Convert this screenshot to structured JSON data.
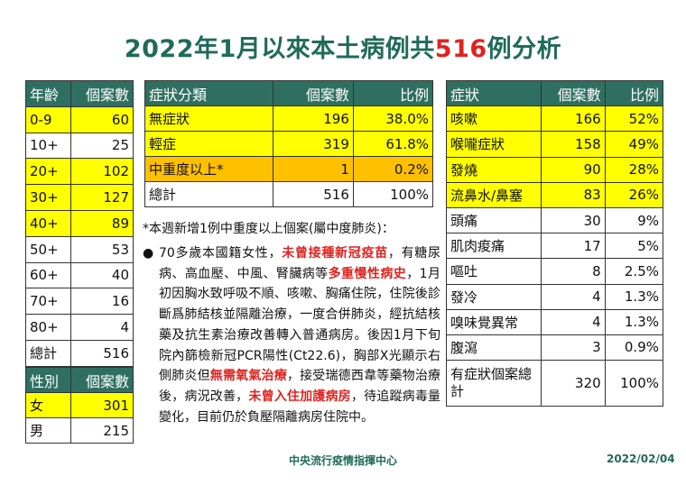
{
  "title": {
    "prefix": "2022年1月以來本土病例共",
    "highlight": "516",
    "suffix": "例分析"
  },
  "age_table": {
    "headers": [
      "年齡",
      "個案數"
    ],
    "rows": [
      {
        "label": "0-9",
        "value": "60",
        "highlight": true
      },
      {
        "label": "10+",
        "value": "25",
        "highlight": false
      },
      {
        "label": "20+",
        "value": "102",
        "highlight": true
      },
      {
        "label": "30+",
        "value": "127",
        "highlight": true
      },
      {
        "label": "40+",
        "value": "89",
        "highlight": true
      },
      {
        "label": "50+",
        "value": "53",
        "highlight": false
      },
      {
        "label": "60+",
        "value": "40",
        "highlight": false
      },
      {
        "label": "70+",
        "value": "16",
        "highlight": false
      },
      {
        "label": "80+",
        "value": "4",
        "highlight": false
      },
      {
        "label": "總計",
        "value": "516",
        "highlight": false
      }
    ]
  },
  "sex_table": {
    "headers": [
      "性別",
      "個案數"
    ],
    "rows": [
      {
        "label": "女",
        "value": "301",
        "highlight": true
      },
      {
        "label": "男",
        "value": "215",
        "highlight": false
      }
    ]
  },
  "severity_table": {
    "headers": [
      "症狀分類",
      "個案數",
      "比例"
    ],
    "rows": [
      {
        "label": "無症狀",
        "value": "196",
        "ratio": "38.0%",
        "color": "yellow"
      },
      {
        "label": "輕症",
        "value": "319",
        "ratio": "61.8%",
        "color": "yellow"
      },
      {
        "label": "中重度以上*",
        "value": "1",
        "ratio": "0.2%",
        "color": "orange"
      },
      {
        "label": "總計",
        "value": "516",
        "ratio": "100%",
        "color": "none"
      }
    ]
  },
  "symptom_table": {
    "headers": [
      "症狀",
      "個案數",
      "比例"
    ],
    "rows": [
      {
        "label": "咳嗽",
        "value": "166",
        "ratio": "52%",
        "highlight": true
      },
      {
        "label": "喉嚨症狀",
        "value": "158",
        "ratio": "49%",
        "highlight": true
      },
      {
        "label": "發燒",
        "value": "90",
        "ratio": "28%",
        "highlight": true
      },
      {
        "label": "流鼻水/鼻塞",
        "value": "83",
        "ratio": "26%",
        "highlight": true
      },
      {
        "label": "頭痛",
        "value": "30",
        "ratio": "9%",
        "highlight": false
      },
      {
        "label": "肌肉痠痛",
        "value": "17",
        "ratio": "5%",
        "highlight": false
      },
      {
        "label": "嘔吐",
        "value": "8",
        "ratio": "2.5%",
        "highlight": false
      },
      {
        "label": "發冷",
        "value": "4",
        "ratio": "1.3%",
        "highlight": false
      },
      {
        "label": "嗅味覺異常",
        "value": "4",
        "ratio": "1.3%",
        "highlight": false
      },
      {
        "label": "腹瀉",
        "value": "3",
        "ratio": "0.9%",
        "highlight": false
      },
      {
        "label": "有症狀個案總計",
        "value": "320",
        "ratio": "100%",
        "highlight": false
      }
    ]
  },
  "note": {
    "heading": "*本週新增1例中重度以上個案(屬中度肺炎)：",
    "bullet": "●",
    "segments": [
      {
        "text": "70多歲本國籍女性，",
        "red": false
      },
      {
        "text": "未曾接種新冠疫苗",
        "red": true
      },
      {
        "text": "，有糖尿病、高血壓、中風、腎臟病等",
        "red": false
      },
      {
        "text": "多重慢性病史",
        "red": true
      },
      {
        "text": "，1月初因胸水致呼吸不順、咳嗽、胸痛住院，住院後診斷爲肺結核並隔離治療，一度合併肺炎，經抗結核藥及抗生素治療改善轉入普通病房。後因1月下旬院內篩檢新冠PCR陽性(Ct22.6)，胸部X光顯示右側肺炎但",
        "red": false
      },
      {
        "text": "無需氧氣治療",
        "red": true
      },
      {
        "text": "，接受瑞德西韋等藥物治療後，病況改善，",
        "red": false
      },
      {
        "text": "未曾入住加護病房",
        "red": true
      },
      {
        "text": "，待追蹤病毒量變化，目前仍於負壓隔離病房住院中。",
        "red": false
      }
    ]
  },
  "footer": {
    "org": "中央流行疫情指揮中心",
    "date": "2022/02/04"
  },
  "colors": {
    "header": "#2f6f61",
    "title": "#1f6b5a",
    "highlight": "#ffff00",
    "orange": "#ffc000",
    "red": "#e0231f"
  }
}
